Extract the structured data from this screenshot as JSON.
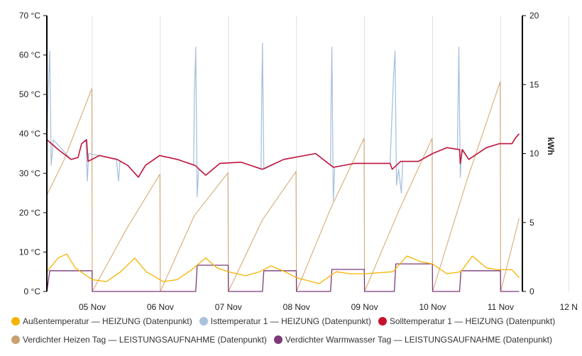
{
  "chart_data": {
    "type": "line",
    "x_ticks": [
      "05 Nov",
      "06 Nov",
      "07 Nov",
      "08 Nov",
      "09 Nov",
      "10 Nov",
      "11 Nov",
      "12 N"
    ],
    "y_left": {
      "ticks": [
        "0 °C",
        "10 °C",
        "20 °C",
        "30 °C",
        "40 °C",
        "50 °C",
        "60 °C",
        "70 °C"
      ],
      "range": [
        0,
        70
      ],
      "unit": "°C"
    },
    "y_right": {
      "ticks": [
        "0",
        "5",
        "10",
        "15",
        "20"
      ],
      "range": [
        0,
        20
      ],
      "label": "kWh"
    },
    "grid": "vertical",
    "legend_position": "bottom",
    "series": [
      {
        "name": "Außentemperatur — HEIZUNG (Datenpunkt)",
        "axis": "left",
        "color": "#f5b400",
        "points": [
          [
            "04 Nov 08:00",
            5
          ],
          [
            "04 Nov 12:00",
            8.5
          ],
          [
            "04 Nov 15:00",
            9.5
          ],
          [
            "04 Nov 18:00",
            6
          ],
          [
            "05 Nov 00:00",
            3
          ],
          [
            "05 Nov 05:00",
            2.5
          ],
          [
            "05 Nov 10:00",
            5
          ],
          [
            "05 Nov 15:00",
            8.5
          ],
          [
            "05 Nov 19:00",
            5
          ],
          [
            "06 Nov 01:00",
            2.5
          ],
          [
            "06 Nov 06:00",
            3
          ],
          [
            "06 Nov 11:00",
            5.5
          ],
          [
            "06 Nov 16:00",
            8.5
          ],
          [
            "06 Nov 20:00",
            6
          ],
          [
            "07 Nov 00:00",
            5
          ],
          [
            "07 Nov 06:00",
            4
          ],
          [
            "07 Nov 11:00",
            5
          ],
          [
            "07 Nov 15:00",
            6.5
          ],
          [
            "07 Nov 20:00",
            5
          ],
          [
            "08 Nov 00:00",
            3.5
          ],
          [
            "08 Nov 08:00",
            2
          ],
          [
            "08 Nov 14:00",
            5
          ],
          [
            "08 Nov 19:00",
            4.5
          ],
          [
            "09 Nov 00:00",
            4.5
          ],
          [
            "09 Nov 10:00",
            5
          ],
          [
            "09 Nov 15:00",
            9
          ],
          [
            "09 Nov 20:00",
            7.5
          ],
          [
            "10 Nov 00:00",
            7
          ],
          [
            "10 Nov 05:00",
            4.5
          ],
          [
            "10 Nov 10:00",
            5
          ],
          [
            "10 Nov 14:00",
            9
          ],
          [
            "10 Nov 19:00",
            6
          ],
          [
            "10 Nov 23:00",
            5.5
          ],
          [
            "11 Nov 04:00",
            5.5
          ],
          [
            "11 Nov 06:30",
            3.5
          ]
        ]
      },
      {
        "name": "Isttemperatur 1 — HEIZUNG (Datenpunkt)",
        "axis": "left",
        "color": "#a9c1dc",
        "points": [
          [
            "04 Nov 08:00",
            38
          ],
          [
            "04 Nov 08:30",
            52
          ],
          [
            "04 Nov 09:00",
            61
          ],
          [
            "04 Nov 09:30",
            32
          ],
          [
            "04 Nov 10:15",
            38.5
          ],
          [
            "04 Nov 16:30",
            33.5
          ],
          [
            "04 Nov 19:00",
            34
          ],
          [
            "04 Nov 20:15",
            37.5
          ],
          [
            "04 Nov 21:45",
            38.5
          ],
          [
            "04 Nov 22:15",
            28
          ],
          [
            "04 Nov 22:45",
            35
          ],
          [
            "05 Nov 02:30",
            34.5
          ],
          [
            "05 Nov 08:30",
            33.5
          ],
          [
            "05 Nov 09:15",
            28
          ],
          [
            "05 Nov 09:45",
            33
          ],
          [
            "05 Nov 12:30",
            32
          ],
          [
            "05 Nov 16:15",
            29
          ],
          [
            "05 Nov 18:45",
            32
          ],
          [
            "05 Nov 23:45",
            34.5
          ],
          [
            "06 Nov 06:00",
            33.5
          ],
          [
            "06 Nov 11:45",
            32
          ],
          [
            "06 Nov 12:00",
            50
          ],
          [
            "06 Nov 12:30",
            62
          ],
          [
            "06 Nov 13:00",
            24
          ],
          [
            "06 Nov 13:30",
            31
          ],
          [
            "06 Nov 16:00",
            29.5
          ],
          [
            "06 Nov 21:00",
            32.5
          ],
          [
            "07 Nov 04:30",
            32.8
          ],
          [
            "07 Nov 11:30",
            31
          ],
          [
            "07 Nov 11:45",
            50
          ],
          [
            "07 Nov 12:00",
            63
          ],
          [
            "07 Nov 12:30",
            31
          ],
          [
            "07 Nov 19:30",
            33.5
          ],
          [
            "08 Nov 06:45",
            35
          ],
          [
            "08 Nov 12:00",
            32
          ],
          [
            "08 Nov 12:15",
            50
          ],
          [
            "08 Nov 12:30",
            62
          ],
          [
            "08 Nov 13:00",
            23
          ],
          [
            "08 Nov 13:30",
            31.5
          ],
          [
            "08 Nov 20:30",
            32.5
          ],
          [
            "09 Nov 09:00",
            32.5
          ],
          [
            "09 Nov 10:15",
            55
          ],
          [
            "09 Nov 10:45",
            61
          ],
          [
            "09 Nov 11:15",
            27
          ],
          [
            "09 Nov 12:00",
            31
          ],
          [
            "09 Nov 13:00",
            25
          ],
          [
            "09 Nov 13:30",
            33
          ],
          [
            "09 Nov 19:00",
            33
          ],
          [
            "10 Nov 00:00",
            35
          ],
          [
            "10 Nov 05:00",
            36.5
          ],
          [
            "10 Nov 08:45",
            36
          ],
          [
            "10 Nov 09:00",
            50
          ],
          [
            "10 Nov 09:15",
            62
          ],
          [
            "10 Nov 09:45",
            29
          ],
          [
            "10 Nov 10:15",
            36
          ],
          [
            "10 Nov 12:45",
            33.5
          ],
          [
            "10 Nov 19:00",
            36.5
          ],
          [
            "10 Nov 23:30",
            37.5
          ],
          [
            "11 Nov 04:00",
            37.5
          ],
          [
            "11 Nov 05:15",
            39
          ],
          [
            "11 Nov 06:30",
            40
          ]
        ]
      },
      {
        "name": "Solltemperatur 1 — HEIZUNG (Datenpunkt)",
        "axis": "left",
        "color": "#c0143c",
        "points": [
          [
            "04 Nov 08:00",
            38.5
          ],
          [
            "04 Nov 12:00",
            36
          ],
          [
            "04 Nov 16:30",
            33.5
          ],
          [
            "04 Nov 19:00",
            34
          ],
          [
            "04 Nov 20:15",
            37.5
          ],
          [
            "04 Nov 22:00",
            38.5
          ],
          [
            "04 Nov 22:30",
            33
          ],
          [
            "05 Nov 02:30",
            34.5
          ],
          [
            "05 Nov 08:45",
            33.5
          ],
          [
            "05 Nov 12:30",
            32
          ],
          [
            "05 Nov 16:15",
            29
          ],
          [
            "05 Nov 18:45",
            32
          ],
          [
            "05 Nov 23:45",
            34.5
          ],
          [
            "06 Nov 06:00",
            33.5
          ],
          [
            "06 Nov 12:15",
            32
          ],
          [
            "06 Nov 16:00",
            29.5
          ],
          [
            "06 Nov 21:00",
            32.5
          ],
          [
            "07 Nov 04:30",
            32.8
          ],
          [
            "07 Nov 12:00",
            31
          ],
          [
            "07 Nov 19:30",
            33.5
          ],
          [
            "08 Nov 06:45",
            35
          ],
          [
            "08 Nov 13:00",
            31.5
          ],
          [
            "08 Nov 20:30",
            32.5
          ],
          [
            "09 Nov 09:00",
            32.5
          ],
          [
            "09 Nov 09:45",
            31
          ],
          [
            "09 Nov 12:45",
            33
          ],
          [
            "09 Nov 19:00",
            33
          ],
          [
            "10 Nov 00:00",
            35
          ],
          [
            "10 Nov 05:00",
            36.5
          ],
          [
            "10 Nov 09:30",
            36
          ],
          [
            "10 Nov 09:45",
            32.5
          ],
          [
            "10 Nov 10:30",
            36
          ],
          [
            "10 Nov 12:45",
            33.5
          ],
          [
            "10 Nov 19:00",
            36.5
          ],
          [
            "10 Nov 23:30",
            37.5
          ],
          [
            "11 Nov 04:00",
            37.5
          ],
          [
            "11 Nov 05:15",
            39
          ],
          [
            "11 Nov 06:30",
            40
          ]
        ]
      },
      {
        "name": "Verdichter Heizen Tag — LEISTUNGSAUFNAHME (Datenpunkt)",
        "axis": "right",
        "color": "#d4a46c",
        "points": [
          [
            "04 Nov 08:00",
            7
          ],
          [
            "04 Nov 14:00",
            9.5
          ],
          [
            "04 Nov 23:50",
            14.7
          ],
          [
            "05 Nov 00:00",
            0
          ],
          [
            "05 Nov 12:00",
            4.5
          ],
          [
            "05 Nov 23:50",
            8.5
          ],
          [
            "06 Nov 00:00",
            0
          ],
          [
            "06 Nov 12:00",
            5.5
          ],
          [
            "06 Nov 23:50",
            8.6
          ],
          [
            "07 Nov 00:00",
            0
          ],
          [
            "07 Nov 12:00",
            5.2
          ],
          [
            "07 Nov 23:50",
            8.7
          ],
          [
            "08 Nov 00:00",
            0
          ],
          [
            "08 Nov 12:00",
            6
          ],
          [
            "08 Nov 23:50",
            11.1
          ],
          [
            "09 Nov 00:00",
            0
          ],
          [
            "09 Nov 12:00",
            5.8
          ],
          [
            "09 Nov 23:50",
            11.1
          ],
          [
            "10 Nov 00:00",
            0
          ],
          [
            "10 Nov 12:00",
            8
          ],
          [
            "10 Nov 23:50",
            15.2
          ],
          [
            "11 Nov 00:00",
            0
          ],
          [
            "11 Nov 06:30",
            5.3
          ]
        ]
      },
      {
        "name": "Verdichter Warmwasser Tag — LEISTUNGSAUFNAHME (Datenpunkt)",
        "axis": "right",
        "color": "#7b3a7a",
        "points": [
          [
            "04 Nov 08:00",
            0
          ],
          [
            "04 Nov 09:00",
            1.5
          ],
          [
            "04 Nov 23:55",
            1.5
          ],
          [
            "05 Nov 00:00",
            0
          ],
          [
            "06 Nov 12:30",
            0
          ],
          [
            "06 Nov 13:00",
            1.9
          ],
          [
            "06 Nov 23:55",
            1.9
          ],
          [
            "07 Nov 00:00",
            0
          ],
          [
            "07 Nov 12:00",
            0
          ],
          [
            "07 Nov 12:30",
            1.5
          ],
          [
            "07 Nov 23:55",
            1.5
          ],
          [
            "08 Nov 00:00",
            0
          ],
          [
            "08 Nov 12:00",
            0
          ],
          [
            "08 Nov 12:30",
            1.6
          ],
          [
            "08 Nov 23:55",
            1.6
          ],
          [
            "09 Nov 00:00",
            0
          ],
          [
            "09 Nov 10:30",
            0
          ],
          [
            "09 Nov 11:00",
            2.0
          ],
          [
            "09 Nov 23:55",
            2.0
          ],
          [
            "10 Nov 00:00",
            0
          ],
          [
            "10 Nov 09:30",
            0
          ],
          [
            "10 Nov 10:00",
            1.5
          ],
          [
            "10 Nov 23:55",
            1.5
          ],
          [
            "11 Nov 00:00",
            0
          ],
          [
            "11 Nov 06:30",
            0
          ]
        ]
      }
    ]
  }
}
